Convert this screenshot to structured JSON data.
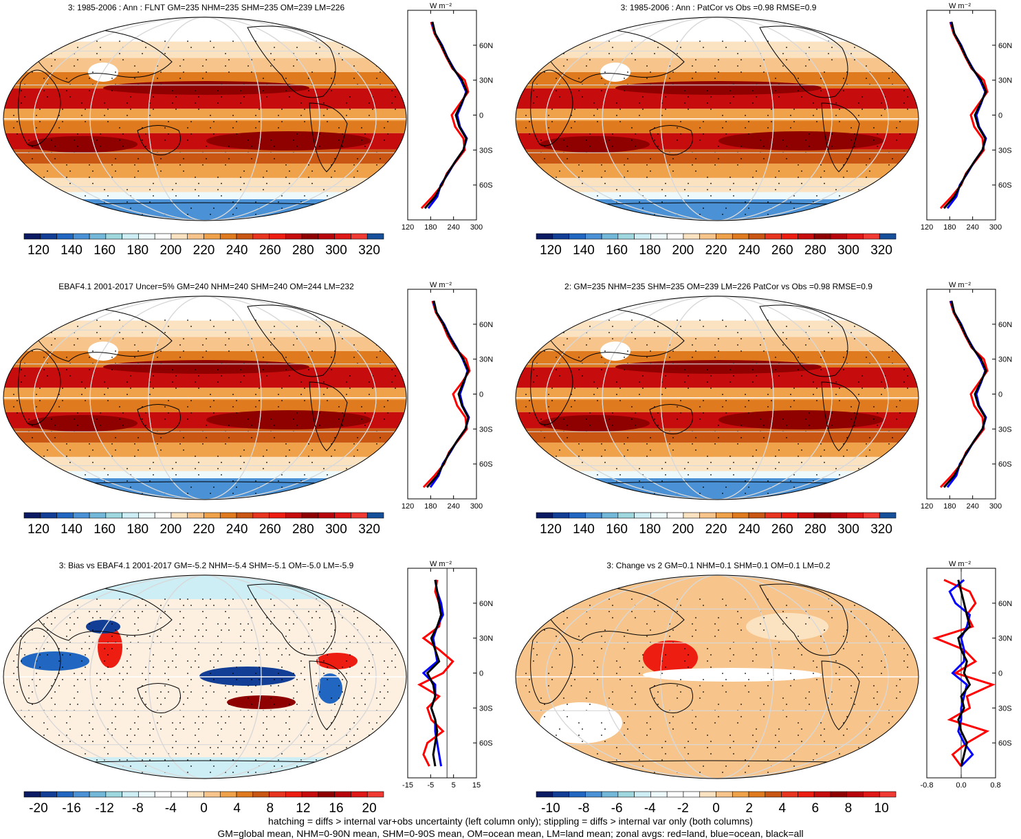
{
  "colors": {
    "red": "#ff0000",
    "blue": "#0000ff",
    "black": "#000000",
    "grid": "#d8d8d8"
  },
  "palette": [
    "#0b1b63",
    "#123f95",
    "#2166c0",
    "#4a91d5",
    "#73b7d9",
    "#9fd7df",
    "#cdeef5",
    "#eef9fb",
    "#ffffff",
    "#fbe3c2",
    "#f7c58b",
    "#f0a24b",
    "#df7a1e",
    "#c95612",
    "#e83520",
    "#ee1d12",
    "#c60c0c",
    "#8f0000",
    "#b8050b",
    "#df1717",
    "#f13a34",
    "#17509a"
  ],
  "panels": [
    {
      "id": "p1",
      "title": "3: 1985-2006 : Ann : FLNT GM=235 NHM=235 SHM=235 OM=239 LM=226",
      "style": "full",
      "colorbar_ticks": [
        "120",
        "140",
        "160",
        "180",
        "200",
        "220",
        "240",
        "260",
        "280",
        "300",
        "320"
      ],
      "zonal_unit": "W m⁻²",
      "zonal_xticks": [
        "120",
        "180",
        "240",
        "300"
      ],
      "zonal_lat_ticks": [
        "60N",
        "30N",
        "0",
        "30S",
        "60S"
      ]
    },
    {
      "id": "p2",
      "title": "3: 1985-2006 : Ann : PatCor vs Obs =0.98 RMSE=0.9",
      "style": "full",
      "colorbar_ticks": [
        "120",
        "140",
        "160",
        "180",
        "200",
        "220",
        "240",
        "260",
        "280",
        "300",
        "320"
      ],
      "zonal_unit": "W m⁻²",
      "zonal_xticks": [
        "120",
        "180",
        "240",
        "300"
      ],
      "zonal_lat_ticks": [
        "60N",
        "30N",
        "0",
        "30S",
        "60S"
      ]
    },
    {
      "id": "p3",
      "title": "EBAF4.1 2001-2017 Uncer=5% GM=240 NHM=240 SHM=240 OM=244 LM=232",
      "style": "full",
      "colorbar_ticks": [
        "120",
        "140",
        "160",
        "180",
        "200",
        "220",
        "240",
        "260",
        "280",
        "300",
        "320"
      ],
      "zonal_unit": "W m⁻²",
      "zonal_xticks": [
        "120",
        "180",
        "240",
        "300"
      ],
      "zonal_lat_ticks": [
        "60N",
        "30N",
        "0",
        "30S",
        "60S"
      ]
    },
    {
      "id": "p4",
      "title": "2: GM=235 NHM=235 SHM=235 OM=239 LM=226 PatCor vs Obs =0.98 RMSE=0.9",
      "style": "full",
      "colorbar_ticks": [
        "120",
        "140",
        "160",
        "180",
        "200",
        "220",
        "240",
        "260",
        "280",
        "300",
        "320"
      ],
      "zonal_unit": "W m⁻²",
      "zonal_xticks": [
        "120",
        "180",
        "240",
        "300"
      ],
      "zonal_lat_ticks": [
        "60N",
        "30N",
        "0",
        "30S",
        "60S"
      ]
    },
    {
      "id": "p5",
      "title": "3: Bias vs EBAF4.1 2001-2017 GM=-5.2 NHM=-5.4 SHM=-5.1 OM=-5.0 LM=-5.9",
      "style": "bias",
      "colorbar_ticks": [
        "-20",
        "-16",
        "-12",
        "-8",
        "-4",
        "0",
        "4",
        "8",
        "12",
        "16",
        "20"
      ],
      "zonal_unit": "W m⁻²",
      "zonal_xticks": [
        "-15",
        "-5",
        "5",
        "15"
      ],
      "zonal_lat_ticks": [
        "60N",
        "30N",
        "0",
        "30S",
        "60S"
      ]
    },
    {
      "id": "p6",
      "title": "3: Change vs 2 GM=0.1 NHM=0.1 SHM=0.1 OM=0.1 LM=0.2",
      "style": "change",
      "colorbar_ticks": [
        "-10",
        "-8",
        "-6",
        "-4",
        "-2",
        "0",
        "2",
        "4",
        "6",
        "8",
        "10"
      ],
      "zonal_unit": "W m⁻²",
      "zonal_xticks": [
        "-0.8",
        "0.0",
        "0.8"
      ],
      "zonal_lat_ticks": [
        "60N",
        "30N",
        "0",
        "30S",
        "60S"
      ]
    }
  ],
  "footnote": {
    "line1": "hatching = diffs > internal var+obs uncertainty (left column only); stippling = diffs > internal var only (both columns)",
    "line2": "GM=global mean, NHM=0-90N mean, SHM=0-90S mean, OM=ocean mean, LM=land mean; zonal avgs: red=land, blue=ocean, black=all"
  },
  "chart_data": [
    {
      "type": "heatmap",
      "title": "3: 1985-2006 : Ann : FLNT GM=235 NHM=235 SHM=235 OM=239 LM=226",
      "colorbar_range": [
        110,
        330
      ],
      "zonal_mean": {
        "lat": [
          80,
          70,
          60,
          50,
          40,
          30,
          20,
          10,
          0,
          -10,
          -20,
          -30,
          -40,
          -50,
          -60,
          -70,
          -80
        ],
        "all": [
          172,
          180,
          198,
          214,
          232,
          258,
          272,
          256,
          240,
          250,
          270,
          262,
          238,
          216,
          198,
          180,
          150
        ],
        "land": [
          168,
          178,
          196,
          212,
          230,
          266,
          276,
          252,
          228,
          238,
          262,
          266,
          240,
          214,
          200,
          172,
          140
        ],
        "ocean": [
          170,
          180,
          200,
          215,
          234,
          255,
          270,
          258,
          244,
          252,
          272,
          262,
          238,
          218,
          196,
          186,
          160
        ]
      }
    },
    {
      "type": "heatmap",
      "title": "3: 1985-2006 : Ann : PatCor vs Obs =0.98 RMSE=0.9",
      "colorbar_range": [
        110,
        330
      ],
      "zonal_mean": {
        "lat": [
          80,
          70,
          60,
          50,
          40,
          30,
          20,
          10,
          0,
          -10,
          -20,
          -30,
          -40,
          -50,
          -60,
          -70,
          -80
        ],
        "all": [
          172,
          180,
          198,
          214,
          232,
          258,
          272,
          256,
          240,
          250,
          270,
          262,
          238,
          216,
          198,
          180,
          150
        ],
        "land": [
          168,
          178,
          196,
          212,
          230,
          266,
          276,
          252,
          228,
          238,
          262,
          266,
          240,
          214,
          200,
          172,
          140
        ],
        "ocean": [
          170,
          180,
          200,
          215,
          234,
          255,
          270,
          258,
          244,
          252,
          272,
          262,
          238,
          218,
          196,
          186,
          160
        ]
      }
    },
    {
      "type": "heatmap",
      "title": "EBAF4.1 2001-2017 Uncer=5% GM=240 NHM=240 SHM=240 OM=244 LM=232",
      "colorbar_range": [
        110,
        330
      ],
      "zonal_mean": {
        "lat": [
          80,
          70,
          60,
          50,
          40,
          30,
          20,
          10,
          0,
          -10,
          -20,
          -30,
          -40,
          -50,
          -60,
          -70,
          -80
        ],
        "all": [
          176,
          184,
          204,
          220,
          240,
          262,
          276,
          262,
          248,
          258,
          276,
          268,
          244,
          222,
          204,
          186,
          156
        ],
        "land": [
          172,
          182,
          202,
          216,
          236,
          270,
          280,
          258,
          232,
          244,
          268,
          272,
          246,
          220,
          206,
          178,
          146
        ],
        "ocean": [
          174,
          184,
          206,
          222,
          242,
          260,
          274,
          264,
          252,
          260,
          278,
          268,
          244,
          224,
          202,
          190,
          166
        ]
      }
    },
    {
      "type": "heatmap",
      "title": "2: GM=235 NHM=235 SHM=235 OM=239 LM=226 PatCor vs Obs =0.98 RMSE=0.9",
      "colorbar_range": [
        110,
        330
      ],
      "zonal_mean": {
        "lat": [
          80,
          70,
          60,
          50,
          40,
          30,
          20,
          10,
          0,
          -10,
          -20,
          -30,
          -40,
          -50,
          -60,
          -70,
          -80
        ],
        "all": [
          172,
          180,
          198,
          214,
          232,
          258,
          272,
          256,
          240,
          250,
          270,
          262,
          238,
          216,
          198,
          180,
          150
        ],
        "land": [
          168,
          178,
          196,
          212,
          230,
          266,
          276,
          252,
          228,
          238,
          262,
          266,
          240,
          214,
          200,
          172,
          140
        ],
        "ocean": [
          170,
          180,
          200,
          215,
          234,
          255,
          270,
          258,
          244,
          252,
          272,
          262,
          238,
          218,
          196,
          186,
          160
        ]
      }
    },
    {
      "type": "heatmap",
      "title": "3: Bias vs EBAF4.1 2001-2017 GM=-5.2 NHM=-5.4 SHM=-5.1 OM=-5.0 LM=-5.9",
      "colorbar_range": [
        -22,
        22
      ],
      "zonal_mean": {
        "lat": [
          80,
          70,
          60,
          50,
          40,
          30,
          20,
          10,
          0,
          -10,
          -20,
          -30,
          -40,
          -50,
          -60,
          -70,
          -80
        ],
        "all": [
          -6,
          -5,
          -4,
          -3,
          -5,
          -8,
          -6,
          -4,
          -10,
          -7,
          -6,
          -8,
          -6,
          -5,
          -6,
          -7,
          -6
        ],
        "land": [
          -5,
          -6,
          -4,
          -3,
          -4,
          -12,
          -4,
          3,
          -2,
          -14,
          -4,
          -10,
          -8,
          -2,
          -10,
          -12,
          -9
        ],
        "ocean": [
          -6,
          -5,
          -3,
          -2,
          -5,
          -7,
          -6,
          -5,
          -12,
          -6,
          -6,
          -8,
          -6,
          -6,
          -5,
          -4,
          -3
        ]
      }
    },
    {
      "type": "heatmap",
      "title": "3: Change vs 2 GM=0.1 NHM=0.1 SHM=0.1 OM=0.1 LM=0.2",
      "colorbar_range": [
        -11,
        11
      ],
      "zonal_mean": {
        "lat": [
          80,
          70,
          60,
          50,
          40,
          30,
          20,
          10,
          0,
          -10,
          -20,
          -30,
          -40,
          -50,
          -60,
          -70,
          -80
        ],
        "all": [
          -0.1,
          0.0,
          0.1,
          0.2,
          0.3,
          -0.1,
          0.0,
          0.2,
          0.1,
          0.3,
          0.0,
          0.1,
          -0.1,
          0.0,
          0.2,
          0.1,
          0.0
        ],
        "land": [
          -0.6,
          0.3,
          0.5,
          0.2,
          0.4,
          -0.9,
          0.1,
          0.5,
          -0.2,
          1.1,
          0.2,
          0.3,
          -0.4,
          0.9,
          0.2,
          -0.3,
          0.0
        ],
        "ocean": [
          0.1,
          -0.4,
          -0.2,
          0.3,
          0.2,
          0.0,
          0.1,
          0.1,
          -0.3,
          0.2,
          0.1,
          0.0,
          0.0,
          -0.1,
          0.1,
          0.4,
          0.0
        ]
      }
    }
  ]
}
